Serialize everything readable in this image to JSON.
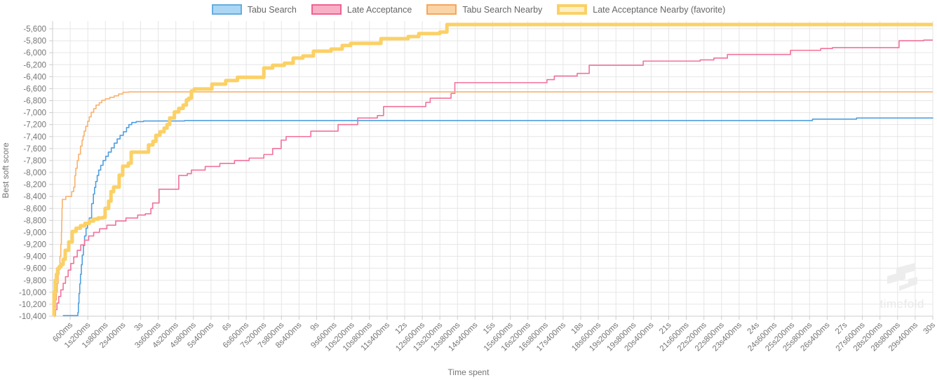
{
  "axes": {
    "y_title": "Best soft score",
    "x_title": "Time spent"
  },
  "watermark": {
    "text": "timefold"
  },
  "chart_data": {
    "type": "line",
    "line_style": "step-after",
    "grid": true,
    "legend_position": "top-center",
    "x_axis": {
      "label": "Time spent",
      "unit": "ms",
      "min_ms": 0,
      "max_ms": 30000,
      "tick_interval_ms": 600,
      "tick_labels": [
        "600ms",
        "1s200ms",
        "1s800ms",
        "2s400ms",
        "3s",
        "3s600ms",
        "4s200ms",
        "4s800ms",
        "5s400ms",
        "6s",
        "6s600ms",
        "7s200ms",
        "7s800ms",
        "8s400ms",
        "9s",
        "9s600ms",
        "10s200ms",
        "10s800ms",
        "11s400ms",
        "12s",
        "12s600ms",
        "13s200ms",
        "13s800ms",
        "14s400ms",
        "15s",
        "15s600ms",
        "16s200ms",
        "16s800ms",
        "17s400ms",
        "18s",
        "18s600ms",
        "19s200ms",
        "19s800ms",
        "20s400ms",
        "21s",
        "21s600ms",
        "22s200ms",
        "22s800ms",
        "23s400ms",
        "24s",
        "24s600ms",
        "25s200ms",
        "25s800ms",
        "26s400ms",
        "27s",
        "27s600ms",
        "28s200ms",
        "28s800ms",
        "29s400ms",
        "30s"
      ]
    },
    "y_axis": {
      "label": "Best soft score",
      "min": -10400,
      "max": -5600,
      "step": 200,
      "labels": [
        "-5,600",
        "-5,800",
        "-6,000",
        "-6,200",
        "-6,400",
        "-6,600",
        "-6,800",
        "-7,000",
        "-7,200",
        "-7,400",
        "-7,600",
        "-7,800",
        "-8,000",
        "-8,200",
        "-8,400",
        "-8,600",
        "-8,800",
        "-9,000",
        "-9,200",
        "-9,400",
        "-9,600",
        "-9,800",
        "-10,000",
        "-10,200",
        "-10,400"
      ]
    },
    "colors": {
      "grid": "#e6e6e6",
      "axis_border": "#cccccc",
      "tick_text": "#757575"
    },
    "series": [
      {
        "name": "Tabu Search",
        "line_color": "#4f9fe0",
        "line_width": 1.6,
        "swatch_fill": "#abd7f5",
        "swatch_border": "#66aede",
        "swatch_border_width": 2,
        "points": [
          [
            350,
            -10390
          ],
          [
            860,
            -10340
          ],
          [
            880,
            -10180
          ],
          [
            900,
            -10020
          ],
          [
            925,
            -9860
          ],
          [
            950,
            -9700
          ],
          [
            980,
            -9540
          ],
          [
            1010,
            -9380
          ],
          [
            1050,
            -9220
          ],
          [
            1090,
            -9060
          ],
          [
            1140,
            -8930
          ],
          [
            1190,
            -8830
          ],
          [
            1250,
            -8760
          ],
          [
            1330,
            -8520
          ],
          [
            1390,
            -8360
          ],
          [
            1430,
            -8250
          ],
          [
            1470,
            -8150
          ],
          [
            1520,
            -8050
          ],
          [
            1570,
            -7960
          ],
          [
            1640,
            -7880
          ],
          [
            1720,
            -7800
          ],
          [
            1810,
            -7730
          ],
          [
            1900,
            -7660
          ],
          [
            2000,
            -7590
          ],
          [
            2100,
            -7510
          ],
          [
            2200,
            -7440
          ],
          [
            2300,
            -7380
          ],
          [
            2410,
            -7320
          ],
          [
            2520,
            -7250
          ],
          [
            2600,
            -7200
          ],
          [
            2700,
            -7165
          ],
          [
            2850,
            -7150
          ],
          [
            3100,
            -7140
          ],
          [
            4500,
            -7133
          ],
          [
            25900,
            -7110
          ],
          [
            27400,
            -7090
          ],
          [
            30000,
            -7085
          ]
        ]
      },
      {
        "name": "Late Acceptance",
        "line_color": "#f2729a",
        "line_width": 1.6,
        "swatch_fill": "#f9b0c7",
        "swatch_border": "#ef6292",
        "swatch_border_width": 2,
        "points": [
          [
            60,
            -10390
          ],
          [
            100,
            -10290
          ],
          [
            150,
            -10180
          ],
          [
            210,
            -10070
          ],
          [
            280,
            -9960
          ],
          [
            360,
            -9850
          ],
          [
            440,
            -9740
          ],
          [
            530,
            -9630
          ],
          [
            620,
            -9520
          ],
          [
            720,
            -9410
          ],
          [
            840,
            -9300
          ],
          [
            960,
            -9210
          ],
          [
            1090,
            -9130
          ],
          [
            1230,
            -9060
          ],
          [
            1400,
            -9000
          ],
          [
            1600,
            -8940
          ],
          [
            1850,
            -8880
          ],
          [
            2150,
            -8810
          ],
          [
            2500,
            -8760
          ],
          [
            2900,
            -8710
          ],
          [
            3160,
            -8690
          ],
          [
            3350,
            -8600
          ],
          [
            3410,
            -8510
          ],
          [
            3630,
            -8280
          ],
          [
            4300,
            -8050
          ],
          [
            4590,
            -8020
          ],
          [
            4730,
            -7960
          ],
          [
            5200,
            -7900
          ],
          [
            5700,
            -7850
          ],
          [
            6200,
            -7800
          ],
          [
            6700,
            -7760
          ],
          [
            7200,
            -7700
          ],
          [
            7500,
            -7600
          ],
          [
            7790,
            -7460
          ],
          [
            7960,
            -7400
          ],
          [
            8800,
            -7310
          ],
          [
            9730,
            -7200
          ],
          [
            10400,
            -7090
          ],
          [
            11070,
            -7050
          ],
          [
            11280,
            -6900
          ],
          [
            12720,
            -6830
          ],
          [
            12870,
            -6760
          ],
          [
            13580,
            -6680
          ],
          [
            13710,
            -6500
          ],
          [
            16850,
            -6450
          ],
          [
            17100,
            -6390
          ],
          [
            17880,
            -6345
          ],
          [
            18290,
            -6210
          ],
          [
            20130,
            -6140
          ],
          [
            22070,
            -6120
          ],
          [
            22540,
            -6090
          ],
          [
            23000,
            -6030
          ],
          [
            25150,
            -5960
          ],
          [
            26180,
            -5930
          ],
          [
            26580,
            -5915
          ],
          [
            28850,
            -5800
          ],
          [
            29690,
            -5790
          ],
          [
            30000,
            -5790
          ]
        ]
      },
      {
        "name": "Tabu Search Nearby",
        "line_color": "#f8b26d",
        "line_width": 1.6,
        "swatch_fill": "#fbd4a5",
        "swatch_border": "#f5a65c",
        "swatch_border_width": 2,
        "points": [
          [
            40,
            -10390
          ],
          [
            70,
            -10260
          ],
          [
            100,
            -10130
          ],
          [
            130,
            -10000
          ],
          [
            160,
            -9850
          ],
          [
            190,
            -9700
          ],
          [
            220,
            -9550
          ],
          [
            250,
            -9400
          ],
          [
            280,
            -9200
          ],
          [
            300,
            -9000
          ],
          [
            310,
            -8800
          ],
          [
            320,
            -8600
          ],
          [
            330,
            -8450
          ],
          [
            450,
            -8400
          ],
          [
            650,
            -8320
          ],
          [
            720,
            -8245
          ],
          [
            760,
            -8050
          ],
          [
            790,
            -7930
          ],
          [
            840,
            -7800
          ],
          [
            885,
            -7695
          ],
          [
            950,
            -7560
          ],
          [
            1005,
            -7460
          ],
          [
            1040,
            -7390
          ],
          [
            1075,
            -7310
          ],
          [
            1130,
            -7230
          ],
          [
            1195,
            -7145
          ],
          [
            1250,
            -7070
          ],
          [
            1315,
            -6995
          ],
          [
            1400,
            -6935
          ],
          [
            1480,
            -6875
          ],
          [
            1590,
            -6835
          ],
          [
            1675,
            -6795
          ],
          [
            1800,
            -6770
          ],
          [
            1950,
            -6745
          ],
          [
            2100,
            -6720
          ],
          [
            2250,
            -6690
          ],
          [
            2400,
            -6660
          ],
          [
            2600,
            -6655
          ],
          [
            30000,
            -6655
          ]
        ]
      },
      {
        "name": "Late Acceptance Nearby (favorite)",
        "line_color": "#fbd166",
        "line_width": 5,
        "swatch_fill": "#fdf0c6",
        "swatch_border": "#fbd166",
        "swatch_border_width": 4,
        "points": [
          [
            40,
            -10390
          ],
          [
            50,
            -10000
          ],
          [
            90,
            -9800
          ],
          [
            130,
            -9700
          ],
          [
            170,
            -9605
          ],
          [
            230,
            -9570
          ],
          [
            290,
            -9535
          ],
          [
            360,
            -9450
          ],
          [
            430,
            -9300
          ],
          [
            550,
            -9160
          ],
          [
            670,
            -8985
          ],
          [
            800,
            -8930
          ],
          [
            950,
            -8890
          ],
          [
            1100,
            -8850
          ],
          [
            1250,
            -8810
          ],
          [
            1400,
            -8780
          ],
          [
            1550,
            -8760
          ],
          [
            1720,
            -8750
          ],
          [
            1790,
            -8600
          ],
          [
            1910,
            -8480
          ],
          [
            1990,
            -8320
          ],
          [
            2080,
            -8245
          ],
          [
            2270,
            -8045
          ],
          [
            2390,
            -7895
          ],
          [
            2580,
            -7845
          ],
          [
            2680,
            -7660
          ],
          [
            3270,
            -7540
          ],
          [
            3420,
            -7480
          ],
          [
            3520,
            -7380
          ],
          [
            3660,
            -7320
          ],
          [
            3800,
            -7260
          ],
          [
            3900,
            -7200
          ],
          [
            3990,
            -7090
          ],
          [
            4150,
            -6990
          ],
          [
            4300,
            -6930
          ],
          [
            4450,
            -6875
          ],
          [
            4560,
            -6790
          ],
          [
            4640,
            -6760
          ],
          [
            4730,
            -6640
          ],
          [
            4830,
            -6605
          ],
          [
            5430,
            -6525
          ],
          [
            5900,
            -6465
          ],
          [
            6300,
            -6410
          ],
          [
            7200,
            -6255
          ],
          [
            7500,
            -6210
          ],
          [
            7900,
            -6175
          ],
          [
            8200,
            -6090
          ],
          [
            8530,
            -6055
          ],
          [
            8890,
            -5975
          ],
          [
            9490,
            -5940
          ],
          [
            9870,
            -5880
          ],
          [
            10160,
            -5845
          ],
          [
            11190,
            -5765
          ],
          [
            12120,
            -5730
          ],
          [
            12480,
            -5680
          ],
          [
            13200,
            -5655
          ],
          [
            13440,
            -5530
          ],
          [
            30000,
            -5530
          ]
        ]
      }
    ]
  }
}
